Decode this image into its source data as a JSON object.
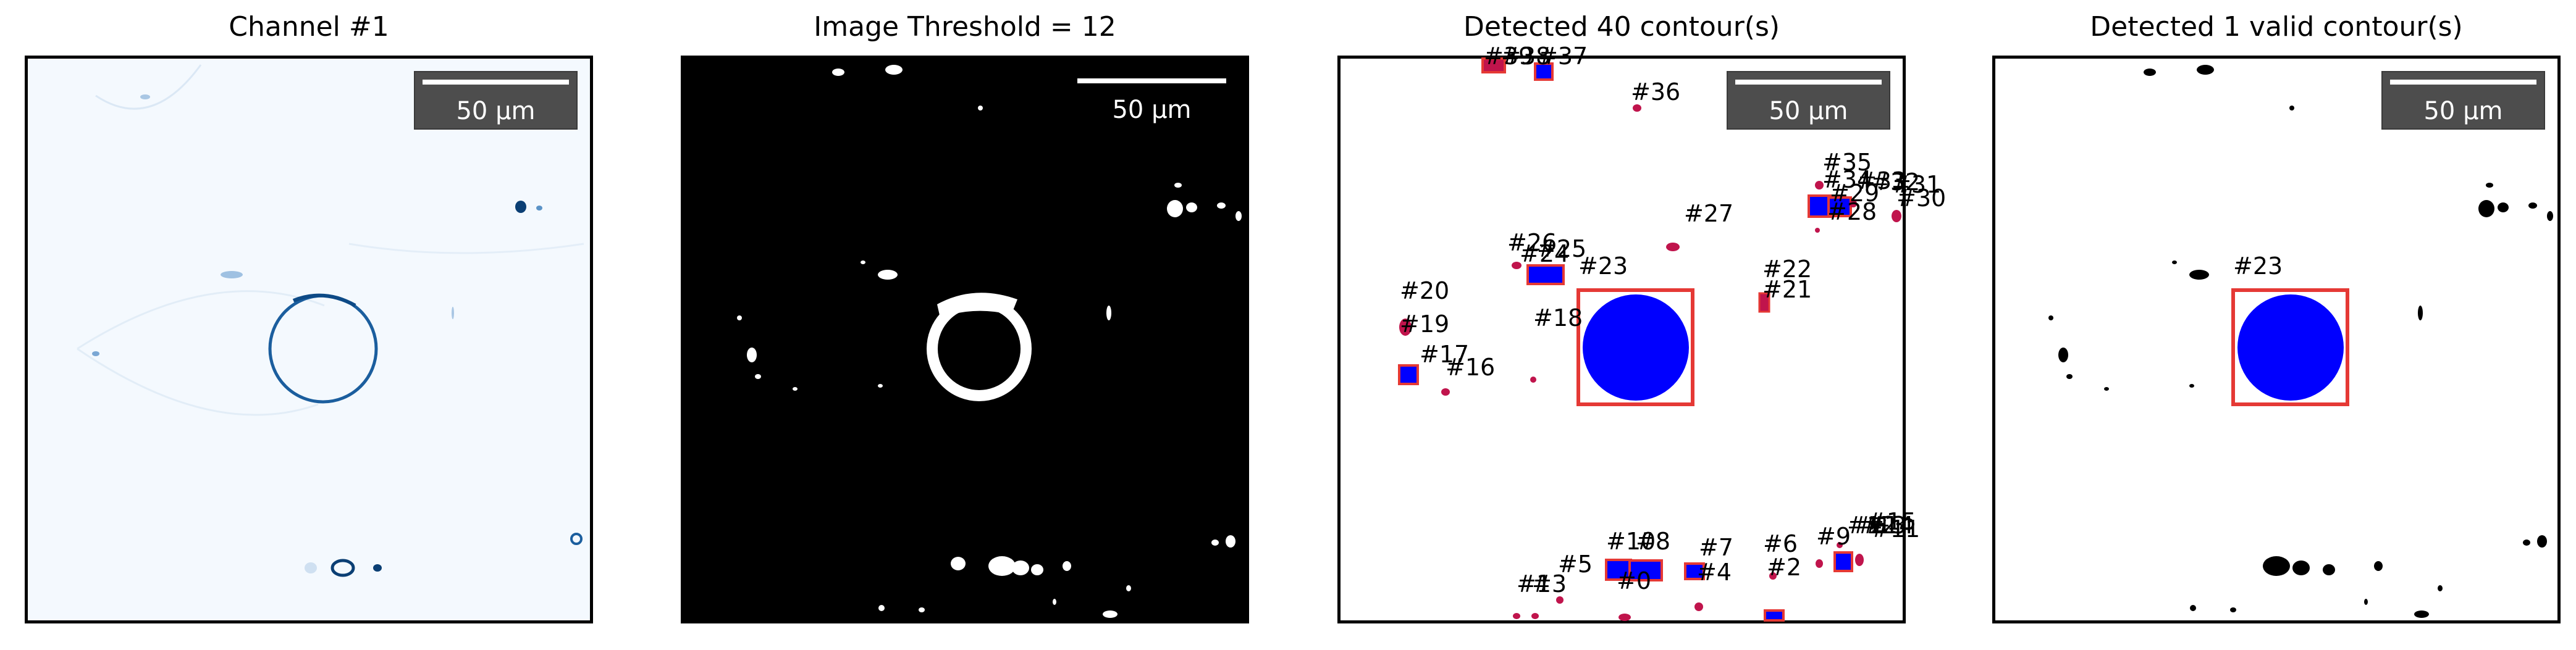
{
  "panels": [
    {
      "title": "Channel #1"
    },
    {
      "title": "Image Threshold = 12"
    },
    {
      "title": "Detected 40 contour(s)"
    },
    {
      "title": "Detected 1 valid contour(s)"
    }
  ],
  "scalebar_label": "50 µm",
  "colors": {
    "channel_cmap_light": "#f3f8fd",
    "channel_cmap_dark": "#0b4a8a",
    "contour_fill": "#0000ff",
    "bbox_stroke": "#e53935",
    "small_contour": "#c0144c"
  },
  "contours_all": [
    {
      "label": "#0"
    },
    {
      "label": "#1"
    },
    {
      "label": "#2"
    },
    {
      "label": "#3"
    },
    {
      "label": "#4"
    },
    {
      "label": "#5"
    },
    {
      "label": "#6"
    },
    {
      "label": "#7"
    },
    {
      "label": "#8"
    },
    {
      "label": "#9"
    },
    {
      "label": "#10"
    },
    {
      "label": "#11"
    },
    {
      "label": "#12"
    },
    {
      "label": "#13"
    },
    {
      "label": "#14"
    },
    {
      "label": "#15"
    },
    {
      "label": "#16"
    },
    {
      "label": "#17"
    },
    {
      "label": "#18"
    },
    {
      "label": "#19"
    },
    {
      "label": "#20"
    },
    {
      "label": "#21"
    },
    {
      "label": "#22"
    },
    {
      "label": "#23"
    },
    {
      "label": "#24"
    },
    {
      "label": "#25"
    },
    {
      "label": "#26"
    },
    {
      "label": "#27"
    },
    {
      "label": "#28"
    },
    {
      "label": "#29"
    },
    {
      "label": "#30"
    },
    {
      "label": "#31"
    },
    {
      "label": "#32"
    },
    {
      "label": "#33"
    },
    {
      "label": "#34"
    },
    {
      "label": "#35"
    },
    {
      "label": "#36"
    },
    {
      "label": "#37"
    },
    {
      "label": "#38"
    },
    {
      "label": "#39"
    }
  ],
  "contours_valid": [
    {
      "label": "#23"
    }
  ]
}
